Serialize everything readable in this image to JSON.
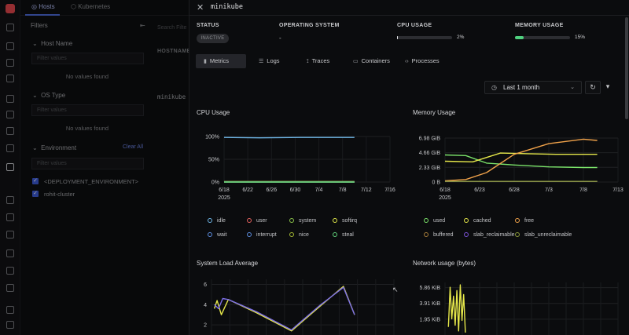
{
  "nav": {
    "tabs": [
      {
        "label": "Hosts",
        "active": true
      },
      {
        "label": "Kubernetes",
        "active": false
      }
    ]
  },
  "filters": {
    "title": "Filters",
    "sections": [
      {
        "label": "Host Name",
        "placeholder": "Filter values",
        "empty": "No values found"
      },
      {
        "label": "OS Type",
        "placeholder": "Filter values",
        "empty": "No values found"
      },
      {
        "label": "Environment",
        "placeholder": "Filter values",
        "clear": "Clear All",
        "options": [
          "<DEPLOYMENT_ENVIRONMENT>",
          "rohit-cluster"
        ]
      }
    ]
  },
  "grid": {
    "search_placeholder": "Search Filte",
    "column_header": "HOSTNAME",
    "row_host": "minikube"
  },
  "drawer": {
    "title": "minikube",
    "status": {
      "label": "STATUS",
      "value": "INACTIVE"
    },
    "os": {
      "label": "OPERATING SYSTEM",
      "value": "-"
    },
    "cpu": {
      "label": "CPU USAGE",
      "value": "2%",
      "fraction": 0.02,
      "color": "#e6e7ea"
    },
    "memory": {
      "label": "MEMORY USAGE",
      "value": "15%",
      "fraction": 0.15,
      "color": "#4fd17e"
    },
    "tabs": [
      {
        "label": "Metrics",
        "icon": "bar-chart-icon",
        "glyph": "▮",
        "active": true
      },
      {
        "label": "Logs",
        "icon": "logs-icon",
        "glyph": "☰",
        "active": false
      },
      {
        "label": "Traces",
        "icon": "traces-icon",
        "glyph": "⟟",
        "active": false
      },
      {
        "label": "Containers",
        "icon": "containers-icon",
        "glyph": "▭",
        "active": false
      },
      {
        "label": "Processes",
        "icon": "code-icon",
        "glyph": "‹›",
        "active": false
      }
    ],
    "time_range": "Last 1 month"
  },
  "chart_data": [
    {
      "type": "line",
      "title": "CPU Usage",
      "x_ticks": [
        "6/18\n2025",
        "6/22",
        "6/26",
        "6/30",
        "7/4",
        "7/8",
        "7/12",
        "7/16"
      ],
      "y_ticks": [
        "100%",
        "50%",
        "0%"
      ],
      "ylim": [
        0,
        100
      ],
      "series": [
        {
          "name": "idle",
          "color": "#6fb7e8",
          "x": [
            "6/18",
            "6/24",
            "7/1",
            "7/8",
            "7/10"
          ],
          "values": [
            98,
            97,
            98,
            98,
            98
          ]
        },
        {
          "name": "user",
          "color": "#e6635f",
          "x": [
            "6/18",
            "7/10"
          ],
          "values": [
            1,
            1
          ]
        },
        {
          "name": "system",
          "color": "#8bc34a",
          "x": [
            "6/18",
            "7/10"
          ],
          "values": [
            1,
            1
          ]
        },
        {
          "name": "softirq",
          "color": "#e0e84a",
          "x": [
            "6/18",
            "7/10"
          ],
          "values": [
            0,
            0
          ]
        },
        {
          "name": "wait",
          "color": "#5c8de0",
          "x": [
            "6/18",
            "7/10"
          ],
          "values": [
            0,
            0
          ]
        },
        {
          "name": "interrupt",
          "color": "#5c8de0",
          "x": [
            "6/18",
            "7/10"
          ],
          "values": [
            0,
            0
          ]
        },
        {
          "name": "nice",
          "color": "#a3b832",
          "x": [
            "6/18",
            "7/10"
          ],
          "values": [
            0,
            0
          ]
        },
        {
          "name": "steal",
          "color": "#5fcf79",
          "x": [
            "6/18",
            "7/10"
          ],
          "values": [
            0,
            0
          ]
        }
      ],
      "grid": true
    },
    {
      "type": "line",
      "title": "Memory Usage",
      "x_ticks": [
        "6/18\n2025",
        "6/23",
        "6/28",
        "7/3",
        "7/8",
        "7/13"
      ],
      "y_ticks": [
        "6.98 GiB",
        "4.66 GiB",
        "2.33 GiB",
        "0 B"
      ],
      "ylim": [
        0,
        6.98
      ],
      "series": [
        {
          "name": "used",
          "color": "#7be36a",
          "x": [
            "6/18",
            "6/21",
            "6/24",
            "6/28",
            "7/3",
            "7/8",
            "7/10"
          ],
          "values": [
            4.3,
            4.2,
            3.0,
            2.7,
            2.4,
            2.3,
            2.3
          ]
        },
        {
          "name": "cached",
          "color": "#e6e84a",
          "x": [
            "6/18",
            "6/22",
            "6/26",
            "6/30",
            "7/4",
            "7/8",
            "7/10"
          ],
          "values": [
            3.3,
            3.2,
            4.6,
            4.5,
            4.4,
            4.4,
            4.4
          ]
        },
        {
          "name": "free",
          "color": "#f0a24a",
          "x": [
            "6/18",
            "6/21",
            "6/24",
            "6/28",
            "7/3",
            "7/8",
            "7/10"
          ],
          "values": [
            0.2,
            0.4,
            1.5,
            4.4,
            6.1,
            6.8,
            6.6
          ]
        },
        {
          "name": "buffered",
          "color": "#a57c3a",
          "x": [
            "6/18",
            "7/10"
          ],
          "values": [
            0.1,
            0.1
          ]
        },
        {
          "name": "slab_reclaimable",
          "color": "#7b52d6",
          "x": [
            "6/18",
            "7/10"
          ],
          "values": [
            0.1,
            0.1
          ]
        },
        {
          "name": "slab_unreclaimable",
          "color": "#8a9a3a",
          "x": [
            "6/18",
            "7/10"
          ],
          "values": [
            0.1,
            0.1
          ]
        }
      ],
      "grid": true
    },
    {
      "type": "line",
      "title": "System Load Average",
      "y_ticks": [
        "6",
        "4",
        "2"
      ],
      "ylim": [
        1,
        6.5
      ],
      "series": [
        {
          "color": "#e6e84a",
          "x": [
            0,
            2,
            5,
            10,
            30,
            55,
            75,
            92,
            100
          ],
          "values": [
            3.6,
            4.4,
            3.0,
            4.5,
            3.2,
            1.4,
            3.8,
            5.8,
            3.0
          ]
        },
        {
          "color": "#7b6ee6",
          "x": [
            0,
            3,
            6,
            10,
            30,
            55,
            75,
            92,
            100
          ],
          "values": [
            4.0,
            3.6,
            4.6,
            4.5,
            3.3,
            1.5,
            3.9,
            5.7,
            3.0
          ]
        }
      ],
      "grid": true
    },
    {
      "type": "line",
      "title": "Network usage (bytes)",
      "y_ticks": [
        "5.86 KiB",
        "3.91 KiB",
        "1.95 KiB"
      ],
      "ylim": [
        0,
        6.5
      ],
      "series": [
        {
          "color": "#e6e84a",
          "x": [
            0,
            1,
            2,
            3,
            4,
            5,
            6,
            7,
            8,
            9,
            10
          ],
          "values": [
            1.0,
            5.9,
            2.0,
            4.8,
            1.2,
            5.5,
            0.5,
            6.2,
            1.8,
            5.0,
            0.3
          ]
        }
      ],
      "grid": true
    }
  ]
}
